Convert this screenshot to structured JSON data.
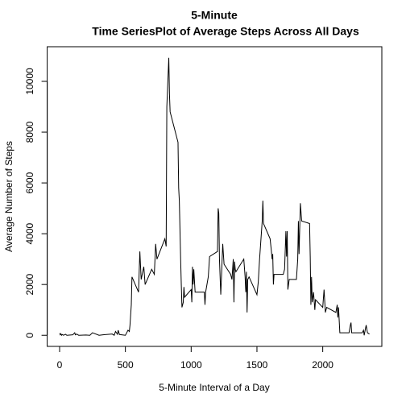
{
  "chart_data": {
    "type": "line",
    "title": "5-Minute",
    "subtitle": "Time SeriesPlot of Average Steps Across All Days",
    "x_label": "5-Minute Interval of a  Day",
    "y_label": "Average Number of Steps",
    "x": [
      0,
      5,
      10,
      15,
      20,
      30,
      45,
      55,
      100,
      115,
      120,
      130,
      145,
      200,
      230,
      250,
      300,
      330,
      400,
      415,
      425,
      440,
      445,
      455,
      500,
      510,
      520,
      530,
      535,
      545,
      550,
      600,
      610,
      620,
      640,
      650,
      700,
      720,
      730,
      740,
      800,
      810,
      815,
      830,
      835,
      840,
      850,
      900,
      905,
      910,
      920,
      925,
      930,
      940,
      945,
      950,
      1000,
      1005,
      1010,
      1015,
      1020,
      1030,
      1100,
      1105,
      1110,
      1130,
      1140,
      1200,
      1205,
      1210,
      1215,
      1225,
      1240,
      1250,
      1300,
      1310,
      1320,
      1325,
      1330,
      1335,
      1340,
      1400,
      1410,
      1415,
      1420,
      1425,
      1430,
      1440,
      1500,
      1510,
      1520,
      1540,
      1545,
      1550,
      1600,
      1610,
      1615,
      1620,
      1625,
      1630,
      1700,
      1710,
      1720,
      1725,
      1730,
      1735,
      1745,
      1800,
      1810,
      1815,
      1820,
      1825,
      1830,
      1840,
      1900,
      1905,
      1910,
      1915,
      1920,
      1930,
      1940,
      1945,
      2000,
      2010,
      2020,
      2030,
      2100,
      2110,
      2115,
      2120,
      2130,
      2200,
      2210,
      2215,
      2220,
      2300,
      2310,
      2315,
      2330,
      2340,
      2355
    ],
    "series": [
      {
        "name": "steps",
        "color": "#000000",
        "values": [
          80,
          20,
          60,
          0,
          30,
          0,
          40,
          0,
          20,
          100,
          20,
          50,
          0,
          10,
          0,
          100,
          0,
          20,
          50,
          0,
          150,
          40,
          200,
          30,
          0,
          100,
          200,
          150,
          400,
          1200,
          2300,
          1700,
          3300,
          2200,
          2700,
          2000,
          2600,
          2400,
          3600,
          3000,
          3800,
          3500,
          9000,
          10927,
          9500,
          8800,
          8600,
          7600,
          5800,
          5300,
          3000,
          2000,
          1100,
          1300,
          1900,
          1500,
          1800,
          1300,
          2700,
          2000,
          2600,
          1700,
          1700,
          1200,
          1700,
          2300,
          3100,
          3300,
          5000,
          4800,
          3000,
          1600,
          3600,
          2800,
          2400,
          2200,
          3000,
          1300,
          2900,
          2600,
          2500,
          3000,
          2300,
          1700,
          2500,
          900,
          2200,
          2300,
          1600,
          2100,
          3000,
          4500,
          5300,
          4400,
          3800,
          3300,
          3000,
          3200,
          2000,
          2400,
          2400,
          2600,
          4100,
          3100,
          4100,
          1800,
          2200,
          2200,
          3000,
          4500,
          3200,
          4200,
          5200,
          4500,
          4400,
          3100,
          1200,
          2300,
          1300,
          1700,
          1000,
          1400,
          1100,
          1800,
          900,
          1100,
          900,
          1200,
          700,
          1100,
          100,
          100,
          400,
          500,
          100,
          100,
          200,
          0,
          400,
          100,
          50
        ]
      }
    ],
    "xlim": [
      -94.2,
      2449.2
    ],
    "xticks": [
      0,
      500,
      1000,
      1500,
      2000
    ],
    "ylim": [
      -437,
      11364
    ],
    "yticks": [
      0,
      2000,
      4000,
      6000,
      8000,
      10000
    ]
  }
}
